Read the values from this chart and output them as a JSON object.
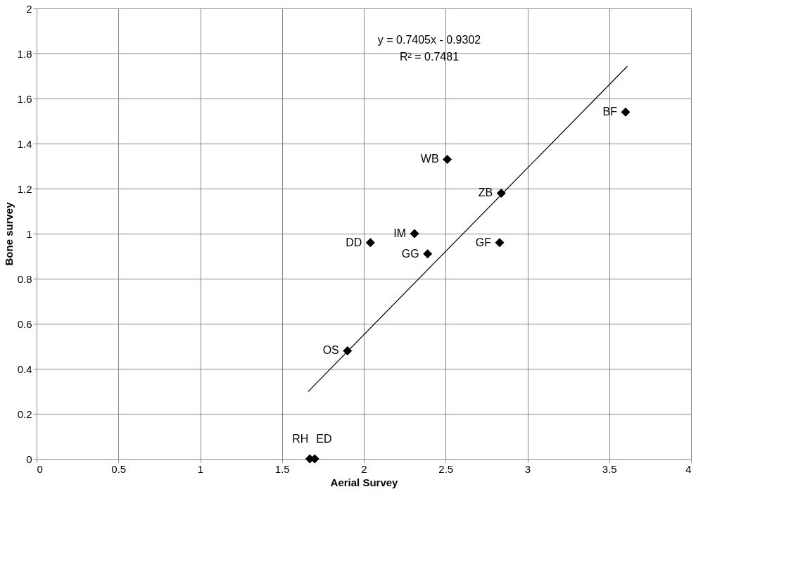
{
  "chart_data": {
    "type": "scatter",
    "xlabel": "Aerial Survey",
    "ylabel": "Bone survey",
    "xlim": [
      0,
      4
    ],
    "xticks": [
      0,
      0.5,
      1,
      1.5,
      2,
      2.5,
      3,
      3.5,
      4
    ],
    "ylim": [
      0,
      2
    ],
    "yticks": [
      0,
      0.2,
      0.4,
      0.6,
      0.8,
      1,
      1.2,
      1.4,
      1.6,
      1.8,
      2
    ],
    "grid": true,
    "marker": "diamond",
    "annotations": [
      "y = 0.7405x - 0.9302",
      "R² = 0.7481"
    ],
    "series": [
      {
        "color": "#000000",
        "x": [
          3.6,
          2.51,
          2.84,
          2.31,
          2.04,
          2.83,
          2.39,
          1.9,
          1.67,
          1.7
        ],
        "values": [
          1.54,
          1.33,
          1.18,
          1.0,
          0.96,
          0.96,
          0.91,
          0.48,
          0,
          0
        ],
        "value_labels": [
          "BF",
          "WB",
          "ZB",
          "IM",
          "DD",
          "GF",
          "GG",
          "OS",
          "RH",
          "ED"
        ]
      },
      {
        "type": "line",
        "marker": "none",
        "line_style": "solid",
        "color": "#000000",
        "x": [
          1.66,
          3.61
        ],
        "values": [
          0.299,
          1.743
        ]
      }
    ]
  }
}
